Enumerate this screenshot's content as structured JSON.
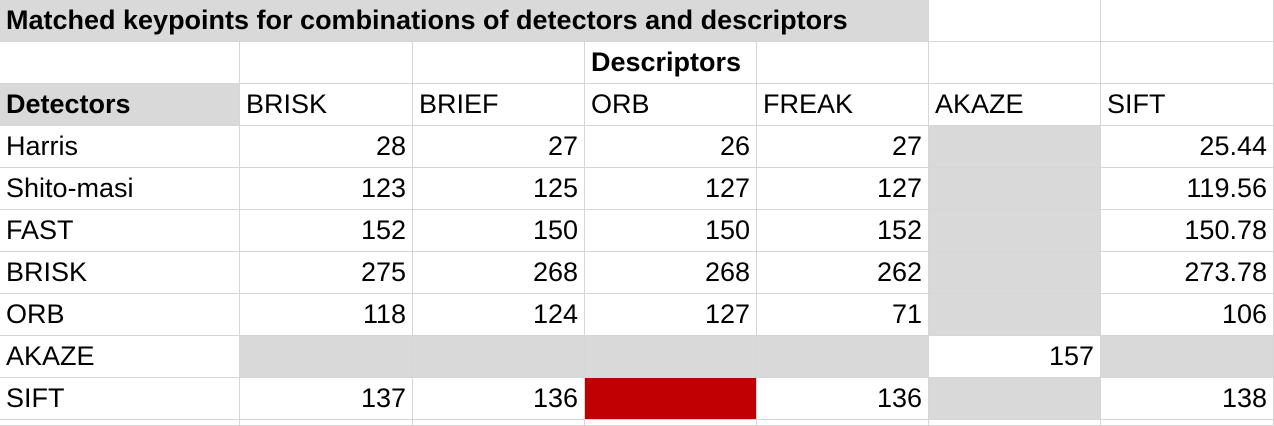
{
  "title": "Matched keypoints for combinations of detectors and descriptors",
  "descriptors_label": "Descriptors",
  "detectors_label": "Detectors",
  "columns": [
    "BRISK",
    "BRIEF",
    "ORB",
    "FREAK",
    "AKAZE",
    "SIFT"
  ],
  "rows": [
    {
      "detector": "Harris",
      "values": [
        "28",
        "27",
        "26",
        "27",
        "",
        "25.44"
      ]
    },
    {
      "detector": "Shito-masi",
      "values": [
        "123",
        "125",
        "127",
        "127",
        "",
        "119.56"
      ]
    },
    {
      "detector": "FAST",
      "values": [
        "152",
        "150",
        "150",
        "152",
        "",
        "150.78"
      ]
    },
    {
      "detector": "BRISK",
      "values": [
        "275",
        "268",
        "268",
        "262",
        "",
        "273.78"
      ]
    },
    {
      "detector": "ORB",
      "values": [
        "118",
        "124",
        "127",
        "71",
        "",
        "106"
      ]
    },
    {
      "detector": "AKAZE",
      "values": [
        "",
        "",
        "",
        "",
        "157",
        ""
      ]
    },
    {
      "detector": "SIFT",
      "values": [
        "137",
        "136",
        "",
        "136",
        "",
        "138"
      ]
    }
  ],
  "colors": {
    "na_fill": "#d9d9d9",
    "highlight_fill": "#c00000",
    "gridline": "#d6d6d6"
  }
}
